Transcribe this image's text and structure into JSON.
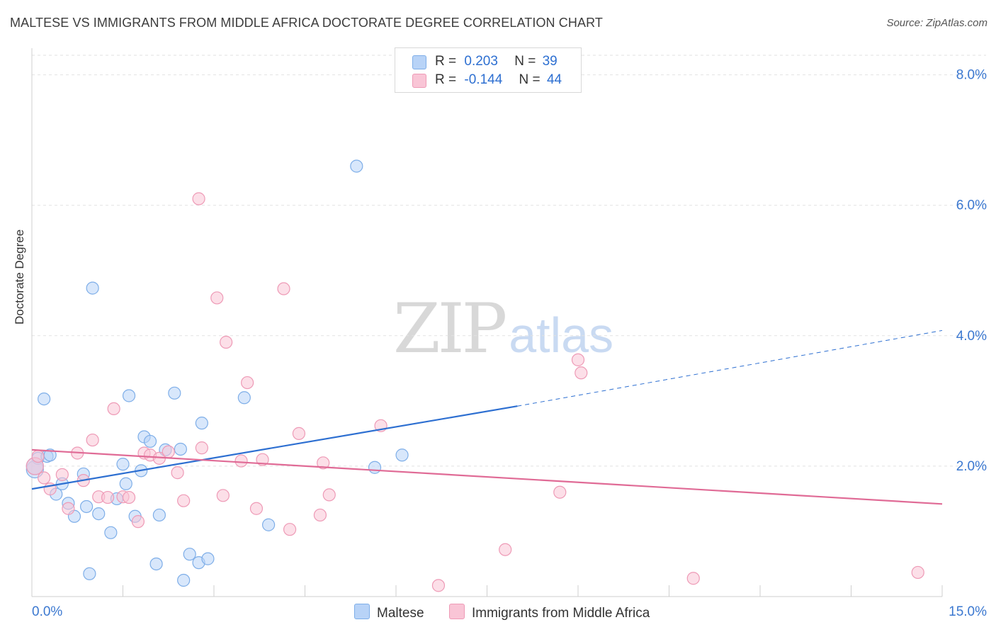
{
  "title": "MALTESE VS IMMIGRANTS FROM MIDDLE AFRICA DOCTORATE DEGREE CORRELATION CHART",
  "source": "Source: ZipAtlas.com",
  "watermark": {
    "zip": "ZIP",
    "atlas": "atlas"
  },
  "legend": {
    "r_label": "R =",
    "n_label": "N =",
    "rows": [
      {
        "r": "0.203",
        "n": "39"
      },
      {
        "r": "-0.144",
        "n": "44"
      }
    ]
  },
  "bottom_legend": [
    "Maltese",
    "Immigrants from Middle Africa"
  ],
  "colors": {
    "maltese_fill": "#b8d3f7",
    "maltese_stroke": "#7eaee8",
    "maltese_line": "#2d6fd1",
    "africa_fill": "#f9c5d6",
    "africa_stroke": "#ee9ab6",
    "africa_line": "#e06b96",
    "tick_label": "#3b78d0"
  },
  "chart_data": {
    "type": "scatter",
    "title": "MALTESE VS IMMIGRANTS FROM MIDDLE AFRICA DOCTORATE DEGREE CORRELATION CHART",
    "xlabel": "",
    "ylabel": "Doctorate Degree",
    "xlim": [
      0,
      15
    ],
    "ylim": [
      0,
      8.3
    ],
    "x_tick_labels": [
      "0.0%",
      "15.0%"
    ],
    "y_ticks": [
      2,
      4,
      6,
      8
    ],
    "y_tick_labels": [
      "2.0%",
      "4.0%",
      "6.0%",
      "8.0%"
    ],
    "grid": "horizontal dashed",
    "series": [
      {
        "name": "Maltese",
        "points": [
          [
            0.05,
            1.95
          ],
          [
            0.1,
            2.12
          ],
          [
            0.2,
            3.03
          ],
          [
            0.25,
            2.15
          ],
          [
            0.3,
            2.17
          ],
          [
            0.4,
            1.57
          ],
          [
            0.5,
            1.73
          ],
          [
            0.6,
            1.43
          ],
          [
            0.7,
            1.23
          ],
          [
            0.85,
            1.88
          ],
          [
            0.9,
            1.38
          ],
          [
            0.95,
            0.35
          ],
          [
            1.0,
            4.73
          ],
          [
            1.1,
            1.27
          ],
          [
            1.3,
            0.98
          ],
          [
            1.4,
            1.5
          ],
          [
            1.5,
            2.03
          ],
          [
            1.55,
            1.73
          ],
          [
            1.6,
            3.08
          ],
          [
            1.7,
            1.23
          ],
          [
            1.8,
            1.93
          ],
          [
            1.85,
            2.45
          ],
          [
            1.95,
            2.38
          ],
          [
            2.05,
            0.5
          ],
          [
            2.1,
            1.25
          ],
          [
            2.2,
            2.25
          ],
          [
            2.35,
            3.12
          ],
          [
            2.45,
            2.26
          ],
          [
            2.5,
            0.25
          ],
          [
            2.6,
            0.65
          ],
          [
            2.75,
            0.52
          ],
          [
            2.8,
            2.66
          ],
          [
            2.9,
            0.58
          ],
          [
            3.5,
            3.05
          ],
          [
            3.9,
            1.1
          ],
          [
            5.35,
            6.6
          ],
          [
            5.65,
            1.98
          ],
          [
            6.1,
            2.17
          ],
          [
            0.05,
            2.0
          ]
        ],
        "trend": {
          "x0": 0,
          "y0": 1.65,
          "x1": 8.0,
          "y1": 2.92,
          "dash_to_x": 15,
          "dash_to_y": 4.08
        }
      },
      {
        "name": "Immigrants from Middle Africa",
        "points": [
          [
            0.05,
            2.0
          ],
          [
            0.1,
            2.15
          ],
          [
            0.2,
            1.82
          ],
          [
            0.3,
            1.65
          ],
          [
            0.5,
            1.87
          ],
          [
            0.6,
            1.35
          ],
          [
            0.75,
            2.2
          ],
          [
            0.85,
            1.78
          ],
          [
            1.0,
            2.4
          ],
          [
            1.1,
            1.53
          ],
          [
            1.25,
            1.52
          ],
          [
            1.35,
            2.88
          ],
          [
            1.5,
            1.53
          ],
          [
            1.6,
            1.52
          ],
          [
            1.75,
            1.15
          ],
          [
            1.85,
            2.2
          ],
          [
            1.95,
            2.17
          ],
          [
            2.1,
            2.12
          ],
          [
            2.25,
            2.22
          ],
          [
            2.4,
            1.9
          ],
          [
            2.5,
            1.47
          ],
          [
            2.75,
            6.1
          ],
          [
            2.8,
            2.28
          ],
          [
            3.05,
            4.58
          ],
          [
            3.15,
            1.55
          ],
          [
            3.2,
            3.9
          ],
          [
            3.45,
            2.08
          ],
          [
            3.55,
            3.28
          ],
          [
            3.7,
            1.35
          ],
          [
            3.8,
            2.1
          ],
          [
            4.15,
            4.72
          ],
          [
            4.25,
            1.03
          ],
          [
            4.4,
            2.5
          ],
          [
            4.75,
            1.25
          ],
          [
            4.8,
            2.05
          ],
          [
            4.9,
            1.56
          ],
          [
            5.75,
            2.62
          ],
          [
            6.7,
            0.17
          ],
          [
            7.8,
            0.72
          ],
          [
            8.7,
            1.6
          ],
          [
            9.0,
            3.63
          ],
          [
            9.05,
            3.43
          ],
          [
            10.9,
            0.28
          ],
          [
            14.6,
            0.37
          ]
        ],
        "trend": {
          "x0": 0,
          "y0": 2.25,
          "x1": 15,
          "y1": 1.42
        }
      }
    ]
  }
}
